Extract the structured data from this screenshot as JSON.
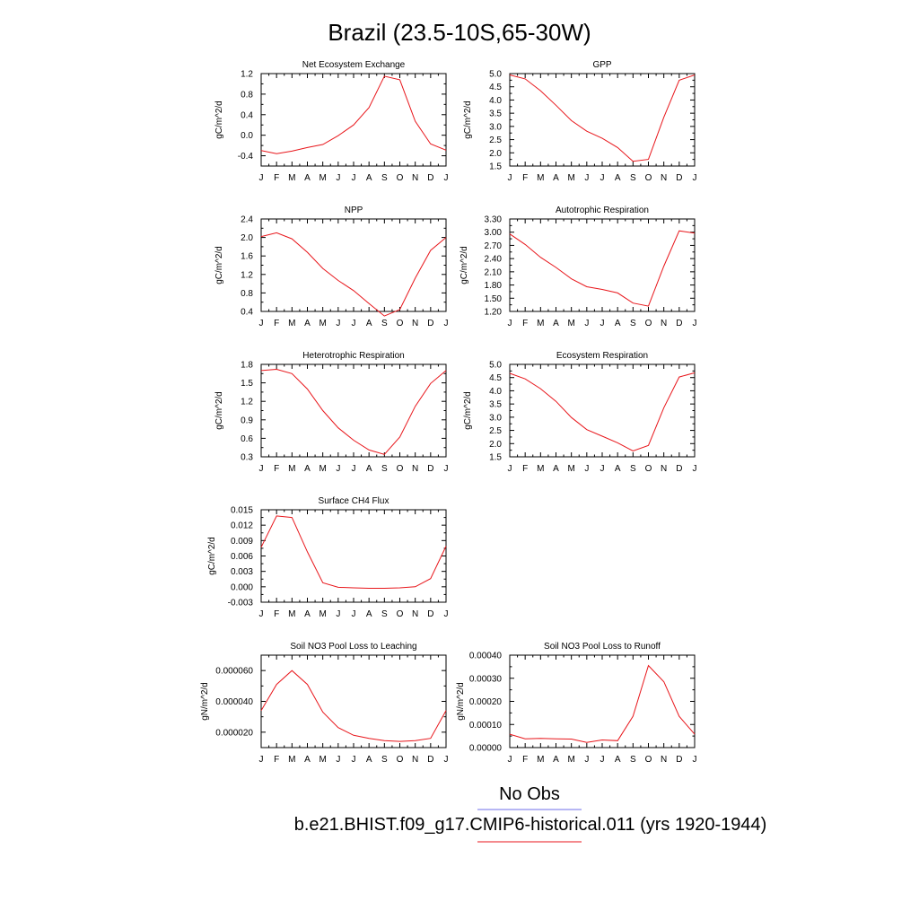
{
  "title": "Brazil (23.5-10S,65-30W)",
  "months": [
    "J",
    "F",
    "M",
    "A",
    "M",
    "J",
    "J",
    "A",
    "S",
    "O",
    "N",
    "D",
    "J"
  ],
  "series_color": "#e8161b",
  "obs_color": "#6f6fe8",
  "legend": {
    "obs_label": "No Obs",
    "model_label": "b.e21.BHIST.f09_g17.CMIP6-historical.011 (yrs 1920-1944)"
  },
  "chart_data": [
    {
      "type": "line",
      "title": "Net Ecosystem Exchange",
      "ylabel": "gC/m^2/d",
      "ylim": [
        -0.6,
        1.2
      ],
      "yticks": [
        "1.2",
        "0.8",
        "0.4",
        "0.0",
        "-0.4"
      ],
      "ytick_values": [
        1.2,
        0.8,
        0.4,
        0.0,
        -0.4
      ],
      "categories": [
        "J",
        "F",
        "M",
        "A",
        "M",
        "J",
        "J",
        "A",
        "S",
        "O",
        "N",
        "D",
        "J"
      ],
      "values": [
        -0.3,
        -0.36,
        -0.31,
        -0.24,
        -0.18,
        -0.01,
        0.2,
        0.54,
        1.15,
        1.08,
        0.27,
        -0.17,
        -0.29
      ]
    },
    {
      "type": "line",
      "title": "GPP",
      "ylabel": "gC/m^2/d",
      "ylim": [
        1.5,
        5.0
      ],
      "yticks": [
        "5.0",
        "4.5",
        "4.0",
        "3.5",
        "3.0",
        "2.5",
        "2.0",
        "1.5"
      ],
      "ytick_values": [
        5.0,
        4.5,
        4.0,
        3.5,
        3.0,
        2.5,
        2.0,
        1.5
      ],
      "categories": [
        "J",
        "F",
        "M",
        "A",
        "M",
        "J",
        "J",
        "A",
        "S",
        "O",
        "N",
        "D",
        "J"
      ],
      "values": [
        4.95,
        4.8,
        4.35,
        3.8,
        3.22,
        2.82,
        2.55,
        2.2,
        1.68,
        1.75,
        3.35,
        4.75,
        4.95
      ]
    },
    {
      "type": "line",
      "title": "NPP",
      "ylabel": "gC/m^2/d",
      "ylim": [
        0.4,
        2.4
      ],
      "yticks": [
        "2.4",
        "2.0",
        "1.6",
        "1.2",
        "0.8",
        "0.4"
      ],
      "ytick_values": [
        2.4,
        2.0,
        1.6,
        1.2,
        0.8,
        0.4
      ],
      "categories": [
        "J",
        "F",
        "M",
        "A",
        "M",
        "J",
        "J",
        "A",
        "S",
        "O",
        "N",
        "D",
        "J"
      ],
      "values": [
        2.02,
        2.1,
        1.97,
        1.68,
        1.33,
        1.07,
        0.85,
        0.57,
        0.3,
        0.44,
        1.12,
        1.72,
        2.0
      ]
    },
    {
      "type": "line",
      "title": "Autotrophic Respiration",
      "ylabel": "gC/m^2/d",
      "ylim": [
        1.2,
        3.3
      ],
      "yticks": [
        "3.30",
        "3.00",
        "2.70",
        "2.40",
        "2.10",
        "1.80",
        "1.50",
        "1.20"
      ],
      "ytick_values": [
        3.3,
        3.0,
        2.7,
        2.4,
        2.1,
        1.8,
        1.5,
        1.2
      ],
      "categories": [
        "J",
        "F",
        "M",
        "A",
        "M",
        "J",
        "J",
        "A",
        "S",
        "O",
        "N",
        "D",
        "J"
      ],
      "values": [
        2.96,
        2.72,
        2.43,
        2.2,
        1.94,
        1.76,
        1.7,
        1.62,
        1.39,
        1.32,
        2.23,
        3.03,
        2.98
      ]
    },
    {
      "type": "line",
      "title": "Heterotrophic Respiration",
      "ylabel": "gC/m^2/d",
      "ylim": [
        0.3,
        1.8
      ],
      "yticks": [
        "1.8",
        "1.5",
        "1.2",
        "0.9",
        "0.6",
        "0.3"
      ],
      "ytick_values": [
        1.8,
        1.5,
        1.2,
        0.9,
        0.6,
        0.3
      ],
      "categories": [
        "J",
        "F",
        "M",
        "A",
        "M",
        "J",
        "J",
        "A",
        "S",
        "O",
        "N",
        "D",
        "J"
      ],
      "values": [
        1.7,
        1.72,
        1.65,
        1.4,
        1.05,
        0.77,
        0.57,
        0.41,
        0.34,
        0.62,
        1.12,
        1.49,
        1.7
      ]
    },
    {
      "type": "line",
      "title": "Ecosystem Respiration",
      "ylabel": "gC/m^2/d",
      "ylim": [
        1.5,
        5.0
      ],
      "yticks": [
        "5.0",
        "4.5",
        "4.0",
        "3.5",
        "3.0",
        "2.5",
        "2.0",
        "1.5"
      ],
      "ytick_values": [
        5.0,
        4.5,
        4.0,
        3.5,
        3.0,
        2.5,
        2.0,
        1.5
      ],
      "categories": [
        "J",
        "F",
        "M",
        "A",
        "M",
        "J",
        "J",
        "A",
        "S",
        "O",
        "N",
        "D",
        "J"
      ],
      "values": [
        4.66,
        4.45,
        4.08,
        3.6,
        2.99,
        2.53,
        2.28,
        2.03,
        1.72,
        1.93,
        3.36,
        4.52,
        4.68
      ]
    },
    {
      "type": "line",
      "title": "Surface CH4 Flux",
      "ylabel": "gC/m^2/d",
      "ylim": [
        -0.003,
        0.015
      ],
      "yticks": [
        "0.015",
        "0.012",
        "0.009",
        "0.006",
        "0.003",
        "0.000",
        "-0.003"
      ],
      "ytick_values": [
        0.015,
        0.012,
        0.009,
        0.006,
        0.003,
        0.0,
        -0.003
      ],
      "categories": [
        "J",
        "F",
        "M",
        "A",
        "M",
        "J",
        "J",
        "A",
        "S",
        "O",
        "N",
        "D",
        "J"
      ],
      "values": [
        0.0077,
        0.0138,
        0.0135,
        0.0068,
        0.0008,
        -0.0001,
        -0.0002,
        -0.0003,
        -0.0003,
        -0.0002,
        0.0,
        0.0016,
        0.0079
      ]
    },
    {
      "type": "line",
      "title": "Soil NO3 Pool Loss to Leaching",
      "ylabel": "gN/m^2/d",
      "ylim": [
        1e-05,
        7e-05
      ],
      "yticks": [
        "0.000060",
        "0.000040",
        "0.000020"
      ],
      "ytick_values": [
        6e-05,
        4e-05,
        2e-05
      ],
      "categories": [
        "J",
        "F",
        "M",
        "A",
        "M",
        "J",
        "J",
        "A",
        "S",
        "O",
        "N",
        "D",
        "J"
      ],
      "values": [
        3.4e-05,
        5.1e-05,
        6e-05,
        5.1e-05,
        3.3e-05,
        2.3e-05,
        1.8e-05,
        1.6e-05,
        1.45e-05,
        1.4e-05,
        1.45e-05,
        1.6e-05,
        3.4e-05
      ]
    },
    {
      "type": "line",
      "title": "Soil NO3 Pool Loss to Runoff",
      "ylabel": "gN/m^2/d",
      "ylim": [
        0.0,
        0.0004
      ],
      "yticks": [
        "0.00040",
        "0.00030",
        "0.00020",
        "0.00010",
        "0.00000"
      ],
      "ytick_values": [
        0.0004,
        0.0003,
        0.0002,
        0.0001,
        0.0
      ],
      "categories": [
        "J",
        "F",
        "M",
        "A",
        "M",
        "J",
        "J",
        "A",
        "S",
        "O",
        "N",
        "D",
        "J"
      ],
      "values": [
        5.8e-05,
        3.8e-05,
        4e-05,
        3.8e-05,
        3.7e-05,
        2.2e-05,
        3.3e-05,
        3e-05,
        0.000135,
        0.000355,
        0.000285,
        0.000135,
        5.8e-05
      ]
    }
  ]
}
